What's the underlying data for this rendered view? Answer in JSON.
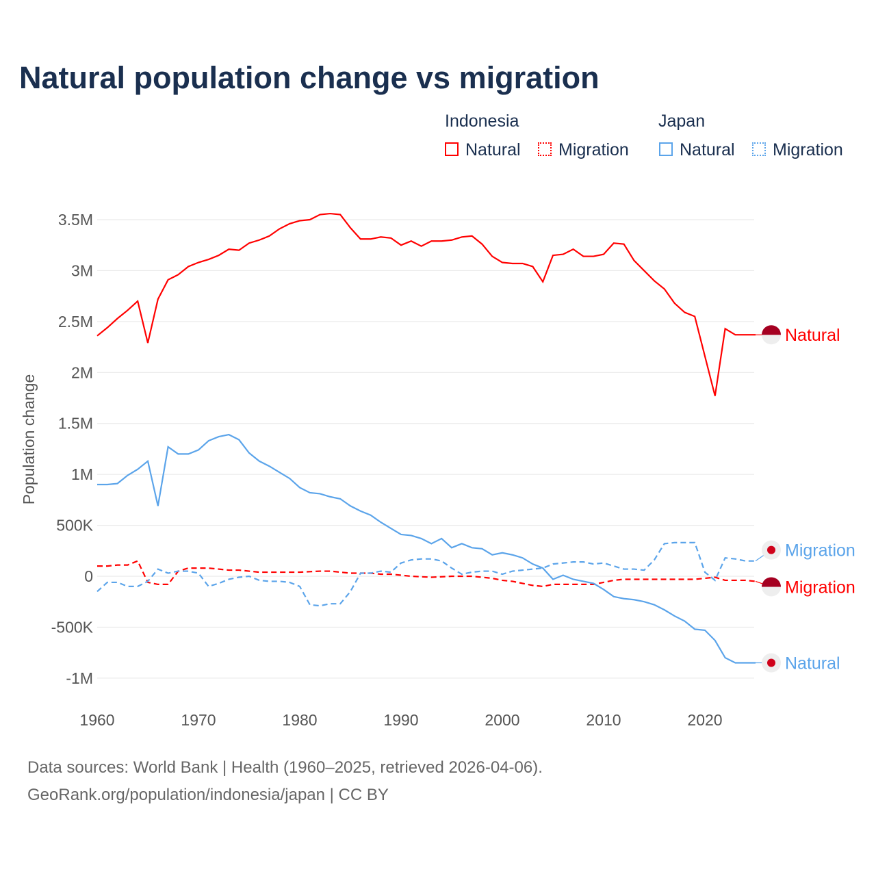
{
  "chart_data": {
    "type": "line",
    "title": "Natural population change vs migration",
    "ylabel": "Population change",
    "xlabel": "",
    "xlim": [
      1960,
      2025
    ],
    "ylim": [
      -1000000,
      3500000
    ],
    "x_ticks": [
      "1960",
      "1970",
      "1980",
      "1990",
      "2000",
      "2010",
      "2020"
    ],
    "y_ticks": [
      {
        "v": 3500000,
        "l": "3.5M"
      },
      {
        "v": 3000000,
        "l": "3M"
      },
      {
        "v": 2500000,
        "l": "2.5M"
      },
      {
        "v": 2000000,
        "l": "2M"
      },
      {
        "v": 1500000,
        "l": "1.5M"
      },
      {
        "v": 1000000,
        "l": "1M"
      },
      {
        "v": 500000,
        "l": "500K"
      },
      {
        "v": 0,
        "l": "0"
      },
      {
        "v": -500000,
        "l": "-500K"
      },
      {
        "v": -1000000,
        "l": "-1M"
      }
    ],
    "x_start": 1960,
    "series": [
      {
        "name": "Natural",
        "country": "Indonesia",
        "color": "#ff0000",
        "dash": false,
        "end_label": "Natural",
        "values": [
          2.36,
          2.44,
          2.53,
          2.61,
          2.7,
          2.29,
          2.72,
          2.91,
          2.96,
          3.04,
          3.08,
          3.11,
          3.15,
          3.21,
          3.2,
          3.27,
          3.3,
          3.34,
          3.41,
          3.46,
          3.49,
          3.5,
          3.55,
          3.56,
          3.55,
          3.42,
          3.31,
          3.31,
          3.33,
          3.32,
          3.25,
          3.29,
          3.24,
          3.29,
          3.29,
          3.3,
          3.33,
          3.34,
          3.26,
          3.14,
          3.08,
          3.07,
          3.07,
          3.04,
          2.89,
          3.15,
          3.16,
          3.21,
          3.14,
          3.14,
          3.16,
          3.27,
          3.26,
          3.1,
          3.0,
          2.9,
          2.82,
          2.68,
          2.59,
          2.55,
          2.16,
          1.77,
          2.43,
          2.37,
          2.37,
          2.37
        ]
      },
      {
        "name": "Migration",
        "country": "Indonesia",
        "color": "#ff0000",
        "dash": true,
        "end_label": "Migration",
        "values": [
          0.1,
          0.1,
          0.11,
          0.11,
          0.15,
          -0.06,
          -0.08,
          -0.08,
          0.05,
          0.08,
          0.08,
          0.08,
          0.07,
          0.06,
          0.06,
          0.05,
          0.04,
          0.04,
          0.04,
          0.04,
          0.04,
          0.045,
          0.05,
          0.05,
          0.04,
          0.03,
          0.03,
          0.03,
          0.02,
          0.02,
          0.01,
          0,
          -0.005,
          -0.01,
          -0.005,
          0,
          0,
          0,
          -0.01,
          -0.02,
          -0.04,
          -0.05,
          -0.07,
          -0.09,
          -0.1,
          -0.08,
          -0.08,
          -0.08,
          -0.08,
          -0.08,
          -0.06,
          -0.04,
          -0.03,
          -0.03,
          -0.03,
          -0.03,
          -0.03,
          -0.03,
          -0.03,
          -0.03,
          -0.02,
          -0.01,
          -0.04,
          -0.04,
          -0.04,
          -0.05
        ]
      },
      {
        "name": "Natural",
        "country": "Japan",
        "color": "#5ba4ea",
        "dash": false,
        "end_label": "Natural",
        "values": [
          0.9,
          0.9,
          0.91,
          0.99,
          1.05,
          1.13,
          0.69,
          1.27,
          1.2,
          1.2,
          1.24,
          1.33,
          1.37,
          1.39,
          1.34,
          1.21,
          1.13,
          1.08,
          1.02,
          0.96,
          0.87,
          0.82,
          0.81,
          0.78,
          0.76,
          0.69,
          0.64,
          0.6,
          0.53,
          0.47,
          0.41,
          0.4,
          0.37,
          0.32,
          0.37,
          0.28,
          0.32,
          0.28,
          0.27,
          0.21,
          0.23,
          0.21,
          0.18,
          0.12,
          0.08,
          -0.03,
          0.01,
          -0.03,
          -0.05,
          -0.07,
          -0.13,
          -0.2,
          -0.22,
          -0.23,
          -0.25,
          -0.28,
          -0.33,
          -0.39,
          -0.44,
          -0.52,
          -0.53,
          -0.63,
          -0.8,
          -0.85,
          -0.85,
          -0.85
        ]
      },
      {
        "name": "Migration",
        "country": "Japan",
        "color": "#5ba4ea",
        "dash": true,
        "end_label": "Migration",
        "values": [
          -0.15,
          -0.06,
          -0.06,
          -0.1,
          -0.1,
          -0.05,
          0.07,
          0.03,
          0.05,
          0.05,
          0.03,
          -0.1,
          -0.07,
          -0.03,
          -0.01,
          0,
          -0.04,
          -0.05,
          -0.05,
          -0.06,
          -0.1,
          -0.28,
          -0.29,
          -0.27,
          -0.27,
          -0.15,
          0.03,
          0.03,
          0.05,
          0.04,
          0.13,
          0.16,
          0.17,
          0.17,
          0.15,
          0.08,
          0.02,
          0.04,
          0.05,
          0.05,
          0.02,
          0.05,
          0.06,
          0.07,
          0.08,
          0.12,
          0.13,
          0.14,
          0.14,
          0.12,
          0.13,
          0.1,
          0.07,
          0.07,
          0.06,
          0.16,
          0.32,
          0.33,
          0.33,
          0.33,
          0.04,
          -0.04,
          0.18,
          0.17,
          0.15,
          0.15
        ]
      }
    ],
    "value_unit": "millions"
  },
  "legend": {
    "indonesia": "Indonesia",
    "japan": "Japan",
    "natural": "Natural",
    "migration": "Migration"
  },
  "footer": {
    "line1": "Data sources: World Bank | Health (1960–2025, retrieved 2026-04-06).",
    "line2": "GeoRank.org/population/indonesia/japan | CC BY"
  }
}
